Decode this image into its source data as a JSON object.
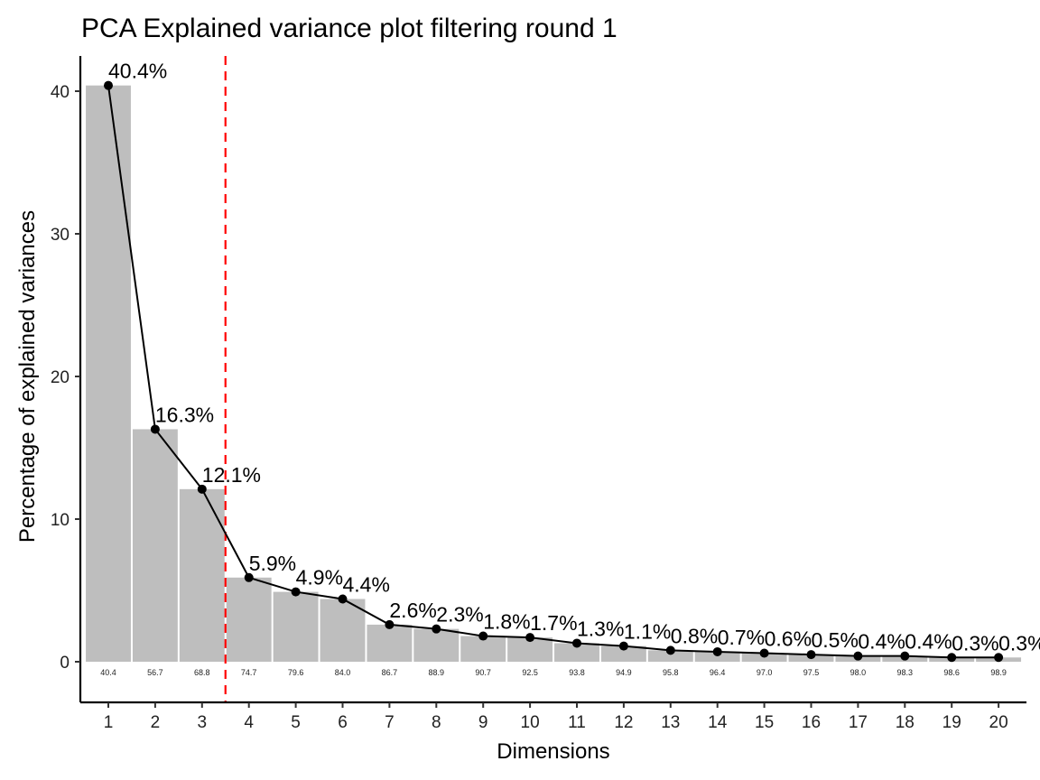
{
  "chart_data": {
    "type": "bar",
    "title": "PCA Explained variance plot filtering round 1",
    "xlabel": "Dimensions",
    "ylabel": "Percentage of explained variances",
    "categories": [
      "1",
      "2",
      "3",
      "4",
      "5",
      "6",
      "7",
      "8",
      "9",
      "10",
      "11",
      "12",
      "13",
      "14",
      "15",
      "16",
      "17",
      "18",
      "19",
      "20"
    ],
    "values": [
      40.4,
      16.3,
      12.1,
      5.9,
      4.9,
      4.4,
      2.6,
      2.3,
      1.8,
      1.7,
      1.3,
      1.1,
      0.8,
      0.7,
      0.6,
      0.5,
      0.4,
      0.4,
      0.3,
      0.3
    ],
    "data_labels": [
      "40.4%",
      "16.3%",
      "12.1%",
      "5.9%",
      "4.9%",
      "4.4%",
      "2.6%",
      "2.3%",
      "1.8%",
      "1.7%",
      "1.3%",
      "1.1%",
      "0.8%",
      "0.7%",
      "0.6%",
      "0.5%",
      "0.4%",
      "0.4%",
      "0.3%",
      "0.3%"
    ],
    "cumulative_labels": [
      "40.4",
      "56.7",
      "68.8",
      "74.7",
      "79.6",
      "84.0",
      "86.7",
      "88.9",
      "90.7",
      "92.5",
      "93.8",
      "94.9",
      "95.8",
      "96.4",
      "97.0",
      "97.5",
      "98.0",
      "98.3",
      "98.6",
      "98.9"
    ],
    "yticks": [
      0,
      10,
      20,
      30,
      40
    ],
    "ytick_labels": [
      "0",
      "10",
      "20",
      "30",
      "40"
    ],
    "ylim": [
      -2.8,
      42.5
    ],
    "xlim": [
      0.4,
      20.6
    ],
    "cutoff_line": {
      "x": 3.5,
      "style": "dashed",
      "color": "#ff0000"
    },
    "bar_color": "#bebebe",
    "line_color": "#000000",
    "grid": false,
    "legend": "none"
  }
}
